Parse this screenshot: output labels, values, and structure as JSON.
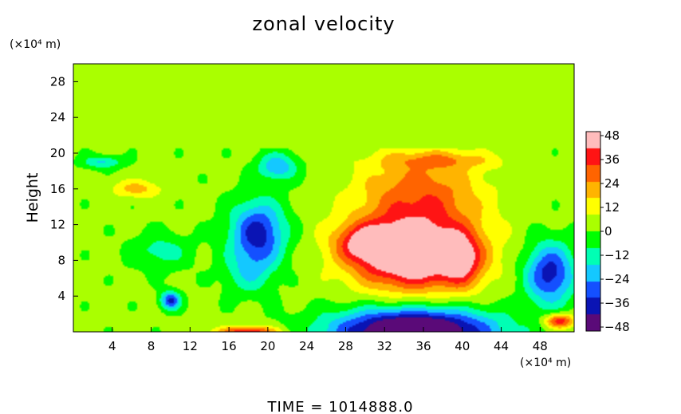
{
  "chart_data": {
    "type": "heatmap",
    "title": "zonal velocity",
    "ylabel": "Height",
    "xunit": "(×10⁴ m)",
    "yunit": "(×10⁴ m)",
    "xlim": [
      0,
      51.5
    ],
    "ylim": [
      0,
      30
    ],
    "xticks": [
      4,
      8,
      12,
      16,
      20,
      24,
      28,
      32,
      36,
      40,
      44,
      48
    ],
    "yticks": [
      4,
      8,
      12,
      16,
      20,
      24,
      28
    ],
    "colorbar": {
      "range": [
        -50,
        50
      ],
      "ticks": [
        48,
        36,
        24,
        12,
        0,
        -12,
        -24,
        -36,
        -48
      ],
      "tick_labels": [
        "48",
        "36",
        "24",
        "12",
        "0",
        "−12",
        "−24",
        "−36",
        "−48"
      ],
      "colors": [
        "#5a0a78",
        "#0a14b4",
        "#1450ff",
        "#14c8ff",
        "#00ffb4",
        "#00ff00",
        "#aaff00",
        "#ffff00",
        "#ffb400",
        "#ff6400",
        "#ff1414",
        "#ffbcbc"
      ]
    },
    "background_value": 2,
    "features": [
      {
        "kind": "max",
        "x": 35,
        "y": 8.5,
        "sx": 6,
        "sy": 3.6,
        "value": 46
      },
      {
        "kind": "max",
        "x": 35,
        "y": 11,
        "sx": 7,
        "sy": 6.5,
        "value": 20
      },
      {
        "kind": "max",
        "x": 36,
        "y": 16,
        "sx": 6,
        "sy": 4.5,
        "value": 18
      },
      {
        "kind": "max",
        "x": 30,
        "y": 10,
        "sx": 3,
        "sy": 2,
        "value": 28
      },
      {
        "kind": "max",
        "x": 40,
        "y": 8,
        "sx": 2,
        "sy": 3,
        "value": 24
      },
      {
        "kind": "max",
        "x": 6.5,
        "y": 16,
        "sx": 2.5,
        "sy": 1,
        "value": 18
      },
      {
        "kind": "max",
        "x": 38,
        "y": 19.2,
        "sx": 6,
        "sy": 0.9,
        "value": 14
      },
      {
        "kind": "min",
        "x": 19,
        "y": 11,
        "sx": 2.8,
        "sy": 3.6,
        "value": -40
      },
      {
        "kind": "min",
        "x": 21,
        "y": 18.5,
        "sx": 2,
        "sy": 1.5,
        "value": -26
      },
      {
        "kind": "min",
        "x": 18,
        "y": 6.5,
        "sx": 2.5,
        "sy": 2.5,
        "value": -14
      },
      {
        "kind": "min",
        "x": 49,
        "y": 6.5,
        "sx": 2.5,
        "sy": 3.4,
        "value": -40
      },
      {
        "kind": "min",
        "x": 10,
        "y": 3.5,
        "sx": 1,
        "sy": 1,
        "value": -38
      },
      {
        "kind": "min",
        "x": 35,
        "y": 0,
        "sx": 8,
        "sy": 2.6,
        "value": -70
      },
      {
        "kind": "min",
        "x": 3,
        "y": 19,
        "sx": 2,
        "sy": 0.7,
        "value": -20
      },
      {
        "kind": "min",
        "x": 9,
        "y": 9,
        "sx": 3,
        "sy": 2,
        "value": -14
      },
      {
        "kind": "max",
        "x": 18,
        "y": 0,
        "sx": 3,
        "sy": 0.6,
        "value": 40
      },
      {
        "kind": "max",
        "x": 50,
        "y": 1.2,
        "sx": 1.5,
        "sy": 0.8,
        "value": 40
      }
    ]
  },
  "footer": {
    "time_text": "TIME  =  1014888.0"
  }
}
